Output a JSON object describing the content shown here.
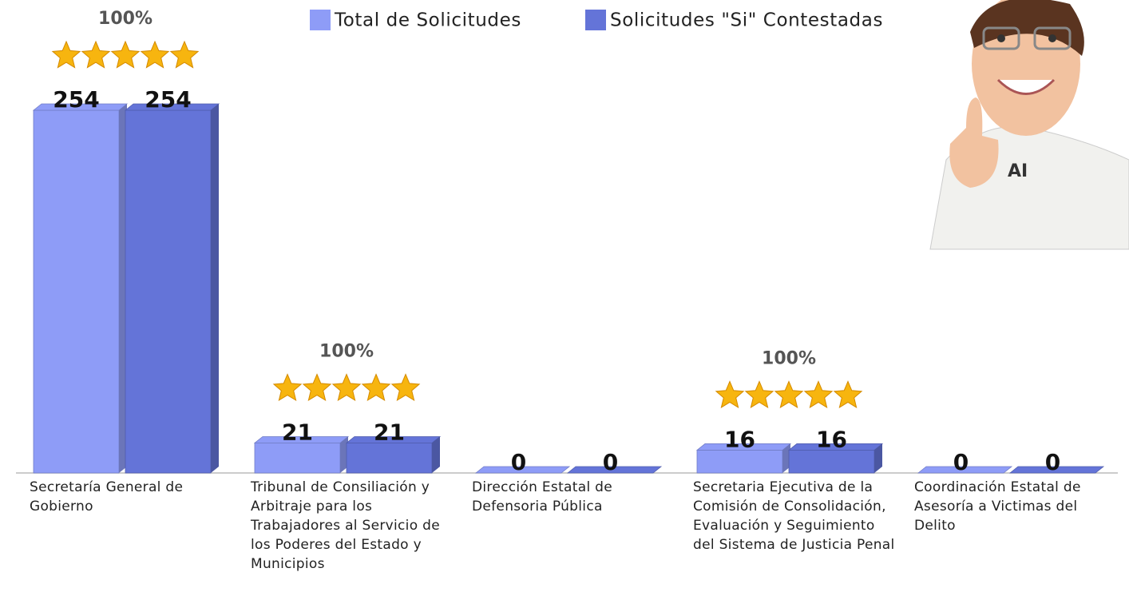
{
  "chart_data": {
    "type": "bar3d",
    "categories": [
      "Secretaría General de Gobierno",
      "Tribunal de Consiliación y Arbitraje para los Trabajadores al Servicio de los Poderes del Estado y Municipios",
      "Dirección Estatal de Defensoria Pública",
      "Secretaria Ejecutiva de la Comisión de Consolidación, Evaluación y Seguimiento del Sistema de Justicia Penal",
      "Coordinación Estatal de Asesoría a Victimas del Delito"
    ],
    "series": [
      {
        "name": "Total de Solicitudes",
        "color": "#8e9cf7",
        "values": [
          254,
          21,
          0,
          16,
          0
        ]
      },
      {
        "name": "Solicitudes \"Si\" Contestadas",
        "color": "#6474d8",
        "values": [
          254,
          21,
          0,
          16,
          0
        ]
      }
    ],
    "percent_labels": [
      "100%",
      "100%",
      null,
      "100%",
      null
    ]
  }
}
